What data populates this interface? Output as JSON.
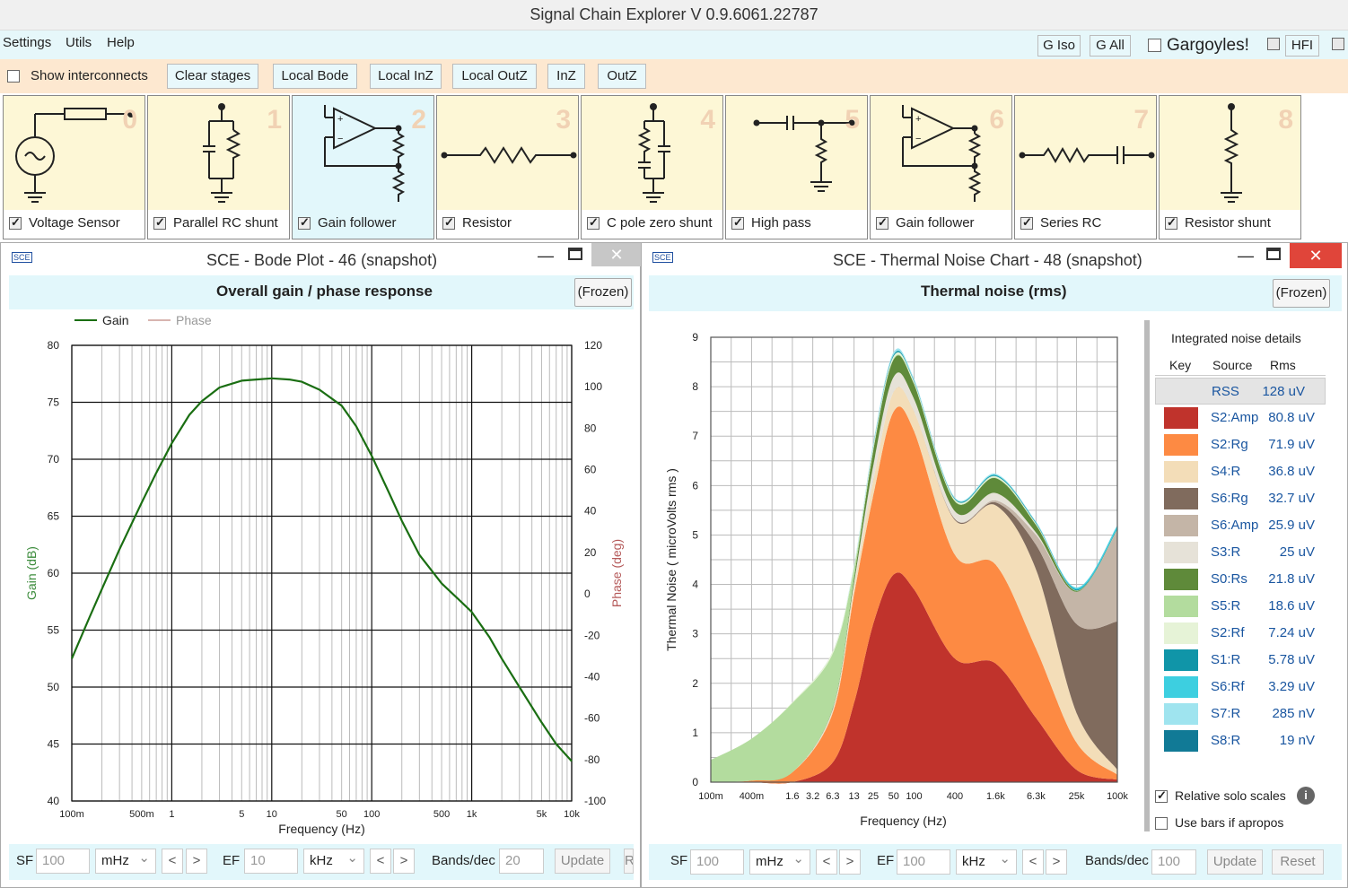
{
  "app": {
    "title": "Signal Chain Explorer V 0.9.6061.22787"
  },
  "menu": {
    "settings": "Settings",
    "utils": "Utils",
    "help": "Help",
    "g_iso": "G Iso",
    "g_all": "G All",
    "gargoyles": "Gargoyles!",
    "hfi": "HFI"
  },
  "toolbar": {
    "show_interconnects": "Show interconnects",
    "clear_stages": "Clear stages",
    "local_bode": "Local Bode",
    "local_inz": "Local InZ",
    "local_outz": "Local OutZ",
    "inz": "InZ",
    "outz": "OutZ"
  },
  "stages": [
    {
      "num": "0",
      "label": "Voltage Sensor"
    },
    {
      "num": "1",
      "label": "Parallel RC shunt"
    },
    {
      "num": "2",
      "label": "Gain follower"
    },
    {
      "num": "3",
      "label": "Resistor"
    },
    {
      "num": "4",
      "label": "C pole zero shunt"
    },
    {
      "num": "5",
      "label": "High pass"
    },
    {
      "num": "6",
      "label": "Gain follower"
    },
    {
      "num": "7",
      "label": "Series RC"
    },
    {
      "num": "8",
      "label": "Resistor shunt"
    }
  ],
  "bode": {
    "window_title": "SCE - Bode Plot - 46  (snapshot)",
    "header": "Overall gain / phase response",
    "frozen": "(Frozen)",
    "legend_gain": "Gain",
    "legend_phase": "Phase",
    "y_left_label": "Gain (dB)",
    "y_right_label": "Phase (deg)",
    "x_label": "Frequency (Hz)",
    "y_left_ticks": [
      "80",
      "75",
      "70",
      "65",
      "60",
      "55",
      "50",
      "45",
      "40"
    ],
    "y_right_ticks": [
      "120",
      "100",
      "80",
      "60",
      "40",
      "20",
      "0",
      "-20",
      "-40",
      "-60",
      "-80",
      "-100"
    ],
    "x_ticks": [
      "100m",
      "500m",
      "1",
      "5",
      "10",
      "50",
      "100",
      "500",
      "1k",
      "5k",
      "10k"
    ],
    "sf_label": "SF",
    "sf_value": "100",
    "sf_unit": "mHz",
    "ef_label": "EF",
    "ef_value": "10",
    "ef_unit": "kHz",
    "bands_label": "Bands/dec",
    "bands_value": "20",
    "update": "Update",
    "reset_partial": "R",
    "prev": "<",
    "next": ">"
  },
  "noise": {
    "window_title": "SCE - Thermal Noise Chart - 48  (snapshot)",
    "header": "Thermal noise (rms)",
    "frozen": "(Frozen)",
    "y_label": "Thermal Noise  ( microVolts rms )",
    "x_label": "Frequency (Hz)",
    "y_ticks": [
      "9",
      "8",
      "7",
      "6",
      "5",
      "4",
      "3",
      "2",
      "1",
      "0"
    ],
    "x_ticks": [
      "100m",
      "400m",
      "1.6",
      "3.2",
      "6.3",
      "13",
      "25",
      "50",
      "100",
      "400",
      "1.6k",
      "6.3k",
      "25k",
      "100k"
    ],
    "details_title": "Integrated noise details",
    "col_key": "Key",
    "col_source": "Source",
    "col_rms": "Rms",
    "rows": [
      {
        "source": "RSS",
        "rms": "128 uV",
        "color": ""
      },
      {
        "source": "S2:Amp",
        "rms": "80.8 uV",
        "color": "#c0332c"
      },
      {
        "source": "S2:Rg",
        "rms": "71.9 uV",
        "color": "#fd8a43"
      },
      {
        "source": "S4:R",
        "rms": "36.8 uV",
        "color": "#f3ddb8"
      },
      {
        "source": "S6:Rg",
        "rms": "32.7 uV",
        "color": "#806b5d"
      },
      {
        "source": "S6:Amp",
        "rms": "25.9 uV",
        "color": "#c4b5a7"
      },
      {
        "source": "S3:R",
        "rms": "25 uV",
        "color": "#e6e2d8"
      },
      {
        "source": "S0:Rs",
        "rms": "21.8 uV",
        "color": "#5f8a3a"
      },
      {
        "source": "S5:R",
        "rms": "18.6 uV",
        "color": "#b3dc9e"
      },
      {
        "source": "S2:Rf",
        "rms": "7.24 uV",
        "color": "#e6f3d7"
      },
      {
        "source": "S1:R",
        "rms": "5.78 uV",
        "color": "#1095a8"
      },
      {
        "source": "S6:Rf",
        "rms": "3.29 uV",
        "color": "#3dcfe0"
      },
      {
        "source": "S7:R",
        "rms": "285 nV",
        "color": "#9fe4ef"
      },
      {
        "source": "S8:R",
        "rms": "19 nV",
        "color": "#117a96"
      }
    ],
    "relative_solo": "Relative solo scales",
    "use_bars": "Use bars if apropos",
    "sf_label": "SF",
    "sf_value": "100",
    "sf_unit": "mHz",
    "ef_label": "EF",
    "ef_value": "100",
    "ef_unit": "kHz",
    "bands_label": "Bands/dec",
    "bands_value": "100",
    "update": "Update",
    "reset": "Reset",
    "prev": "<",
    "next": ">"
  },
  "chart_data": [
    {
      "type": "line",
      "title": "Overall gain / phase response",
      "xlabel": "Frequency (Hz)",
      "ylabel": "Gain (dB)",
      "y2label": "Phase (deg)",
      "xscale": "log",
      "xlim": [
        0.1,
        10000
      ],
      "ylim": [
        40,
        80
      ],
      "y2lim": [
        -100,
        120
      ],
      "legend": "top-left",
      "series": [
        {
          "name": "Gain",
          "color": "#1a6e12",
          "x": [
            0.1,
            0.15,
            0.2,
            0.3,
            0.5,
            0.7,
            1,
            1.5,
            2,
            3,
            5,
            7,
            10,
            15,
            20,
            30,
            50,
            70,
            100,
            150,
            200,
            300,
            500,
            700,
            1000,
            1500,
            2000,
            3000,
            5000,
            7000,
            10000
          ],
          "y": [
            52.5,
            56.1,
            58.6,
            62.1,
            66.2,
            68.8,
            71.4,
            73.9,
            75.1,
            76.3,
            76.9,
            77.0,
            77.1,
            77.0,
            76.8,
            76.1,
            74.7,
            72.9,
            70.3,
            67.0,
            64.6,
            61.6,
            59.1,
            57.9,
            56.6,
            54.4,
            52.5,
            50.0,
            46.9,
            45.0,
            43.5
          ]
        },
        {
          "name": "Phase",
          "color": "#d8b5b0",
          "x": [],
          "y": []
        }
      ]
    },
    {
      "type": "area",
      "title": "Thermal noise (rms)",
      "xlabel": "Frequency (Hz)",
      "ylabel": "Thermal Noise  ( microVolts rms )",
      "xscale": "log",
      "xlim": [
        0.1,
        100000
      ],
      "ylim": [
        0,
        9
      ],
      "stacked": true,
      "x": [
        0.1,
        0.4,
        1.6,
        6.3,
        13,
        25,
        50,
        100,
        400,
        1600,
        6300,
        25000,
        100000
      ],
      "series": [
        {
          "name": "S2:Amp",
          "values": [
            0,
            0,
            0,
            0.4,
            1.6,
            3.2,
            4.2,
            3.9,
            2.5,
            2.4,
            1.3,
            0.25,
            0.05
          ]
        },
        {
          "name": "S2:Rg",
          "values": [
            0,
            0.03,
            0.2,
            1.0,
            2.2,
            2.6,
            3.3,
            3.2,
            2.1,
            2.0,
            1.4,
            0.55,
            0.1
          ]
        },
        {
          "name": "S4:R",
          "values": [
            0,
            0,
            0,
            0.05,
            0.15,
            0.3,
            0.4,
            0.4,
            0.7,
            1.2,
            1.6,
            0.6,
            0.1
          ]
        },
        {
          "name": "S6:Rg",
          "values": [
            0,
            0,
            0,
            0,
            0,
            0,
            0,
            0,
            0.02,
            0.06,
            0.5,
            1.8,
            3.0
          ]
        },
        {
          "name": "S6:Amp",
          "values": [
            0,
            0,
            0,
            0,
            0,
            0,
            0,
            0,
            0.01,
            0.04,
            0.2,
            0.65,
            1.85
          ]
        },
        {
          "name": "S3:R",
          "values": [
            0,
            0,
            0,
            0.03,
            0.08,
            0.3,
            0.3,
            0.25,
            0.15,
            0.15,
            0.05,
            0,
            0
          ]
        },
        {
          "name": "S0:Rs",
          "values": [
            0,
            0,
            0,
            0.02,
            0.1,
            0.3,
            0.35,
            0.3,
            0.2,
            0.3,
            0.15,
            0.02,
            0
          ]
        },
        {
          "name": "S5:R",
          "values": [
            0.45,
            0.85,
            1.4,
            1.1,
            0.2,
            0.04,
            0.02,
            0.01,
            0.01,
            0.01,
            0.01,
            0.01,
            0.01
          ]
        },
        {
          "name": "S2:Rf",
          "values": [
            0,
            0,
            0.02,
            0.05,
            0.05,
            0.05,
            0.05,
            0.04,
            0.03,
            0.03,
            0.02,
            0,
            0
          ]
        },
        {
          "name": "S1:R",
          "values": [
            0,
            0,
            0,
            0,
            0,
            0.02,
            0.03,
            0.02,
            0.02,
            0.02,
            0.02,
            0.02,
            0.02
          ]
        },
        {
          "name": "S6:Rf",
          "values": [
            0,
            0,
            0,
            0,
            0,
            0,
            0,
            0,
            0,
            0.01,
            0.01,
            0.03,
            0.06
          ]
        },
        {
          "name": "S7:R",
          "values": [
            0,
            0,
            0,
            0,
            0.02,
            0.05,
            0.05,
            0.04,
            0.02,
            0.02,
            0.01,
            0.01,
            0.01
          ]
        },
        {
          "name": "S8:R",
          "values": [
            0,
            0,
            0,
            0,
            0,
            0,
            0,
            0,
            0,
            0,
            0,
            0,
            0
          ]
        }
      ]
    }
  ]
}
